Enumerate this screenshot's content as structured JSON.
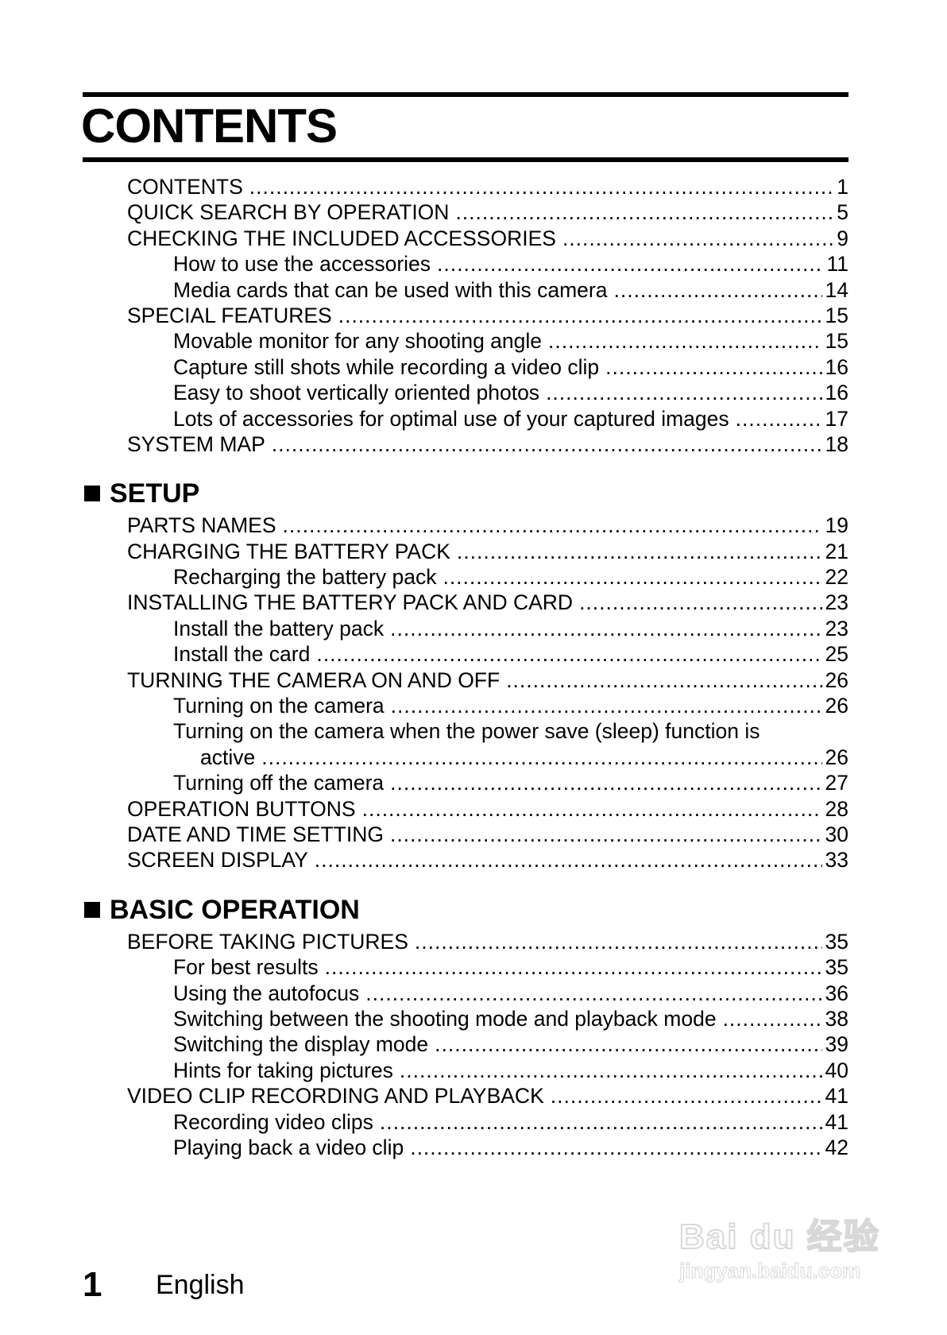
{
  "title": "CONTENTS",
  "intro": [
    {
      "label": "CONTENTS",
      "page": "1",
      "level": 1
    },
    {
      "label": "QUICK SEARCH BY OPERATION",
      "page": "5",
      "level": 1
    },
    {
      "label": "CHECKING THE INCLUDED ACCESSORIES",
      "page": "9",
      "level": 1
    },
    {
      "label": "How to use the accessories",
      "page": "11",
      "level": 2
    },
    {
      "label": "Media cards that can be used with this camera",
      "page": "14",
      "level": 2
    },
    {
      "label": "SPECIAL FEATURES",
      "page": "15",
      "level": 1
    },
    {
      "label": "Movable monitor for any shooting angle",
      "page": "15",
      "level": 2
    },
    {
      "label": "Capture still shots while recording a video clip",
      "page": "16",
      "level": 2
    },
    {
      "label": "Easy to shoot vertically oriented photos",
      "page": "16",
      "level": 2
    },
    {
      "label": "Lots of accessories for optimal use of your captured images",
      "page": "17",
      "level": 2
    },
    {
      "label": "SYSTEM MAP",
      "page": "18",
      "level": 1
    }
  ],
  "sections": [
    {
      "heading": "SETUP",
      "items": [
        {
          "label": "PARTS NAMES",
          "page": "19",
          "level": 1
        },
        {
          "label": "CHARGING THE BATTERY PACK",
          "page": "21",
          "level": 1
        },
        {
          "label": "Recharging the battery pack",
          "page": "22",
          "level": 2
        },
        {
          "label": "INSTALLING THE BATTERY PACK AND CARD",
          "page": "23",
          "level": 1
        },
        {
          "label": "Install the battery pack",
          "page": "23",
          "level": 2
        },
        {
          "label": "Install the card",
          "page": "25",
          "level": 2
        },
        {
          "label": "TURNING THE CAMERA ON AND OFF",
          "page": "26",
          "level": 1
        },
        {
          "label": "Turning on the camera",
          "page": "26",
          "level": 2
        },
        {
          "label": "Turning on the camera when the power save (sleep) function is",
          "page": "",
          "level": 2
        },
        {
          "label": "active",
          "page": "26",
          "level": 3
        },
        {
          "label": "Turning off the camera",
          "page": "27",
          "level": 2
        },
        {
          "label": "OPERATION BUTTONS",
          "page": "28",
          "level": 1
        },
        {
          "label": "DATE AND TIME SETTING",
          "page": "30",
          "level": 1
        },
        {
          "label": "SCREEN DISPLAY",
          "page": "33",
          "level": 1
        }
      ]
    },
    {
      "heading": "BASIC OPERATION",
      "items": [
        {
          "label": "BEFORE TAKING PICTURES",
          "page": "35",
          "level": 1
        },
        {
          "label": "For best results",
          "page": "35",
          "level": 2
        },
        {
          "label": "Using the autofocus",
          "page": "36",
          "level": 2
        },
        {
          "label": "Switching between the shooting mode and playback mode",
          "page": "38",
          "level": 2
        },
        {
          "label": "Switching the display mode",
          "page": "39",
          "level": 2
        },
        {
          "label": "Hints for taking pictures",
          "page": "40",
          "level": 2
        },
        {
          "label": "VIDEO CLIP RECORDING AND PLAYBACK",
          "page": "41",
          "level": 1
        },
        {
          "label": "Recording video clips",
          "page": "41",
          "level": 2
        },
        {
          "label": "Playing back a video clip",
          "page": "42",
          "level": 2
        }
      ]
    }
  ],
  "footer": {
    "page_number": "1",
    "language": "English"
  },
  "watermark": {
    "logo": "Bai du 经验",
    "url": "jingyan.baidu.com"
  }
}
